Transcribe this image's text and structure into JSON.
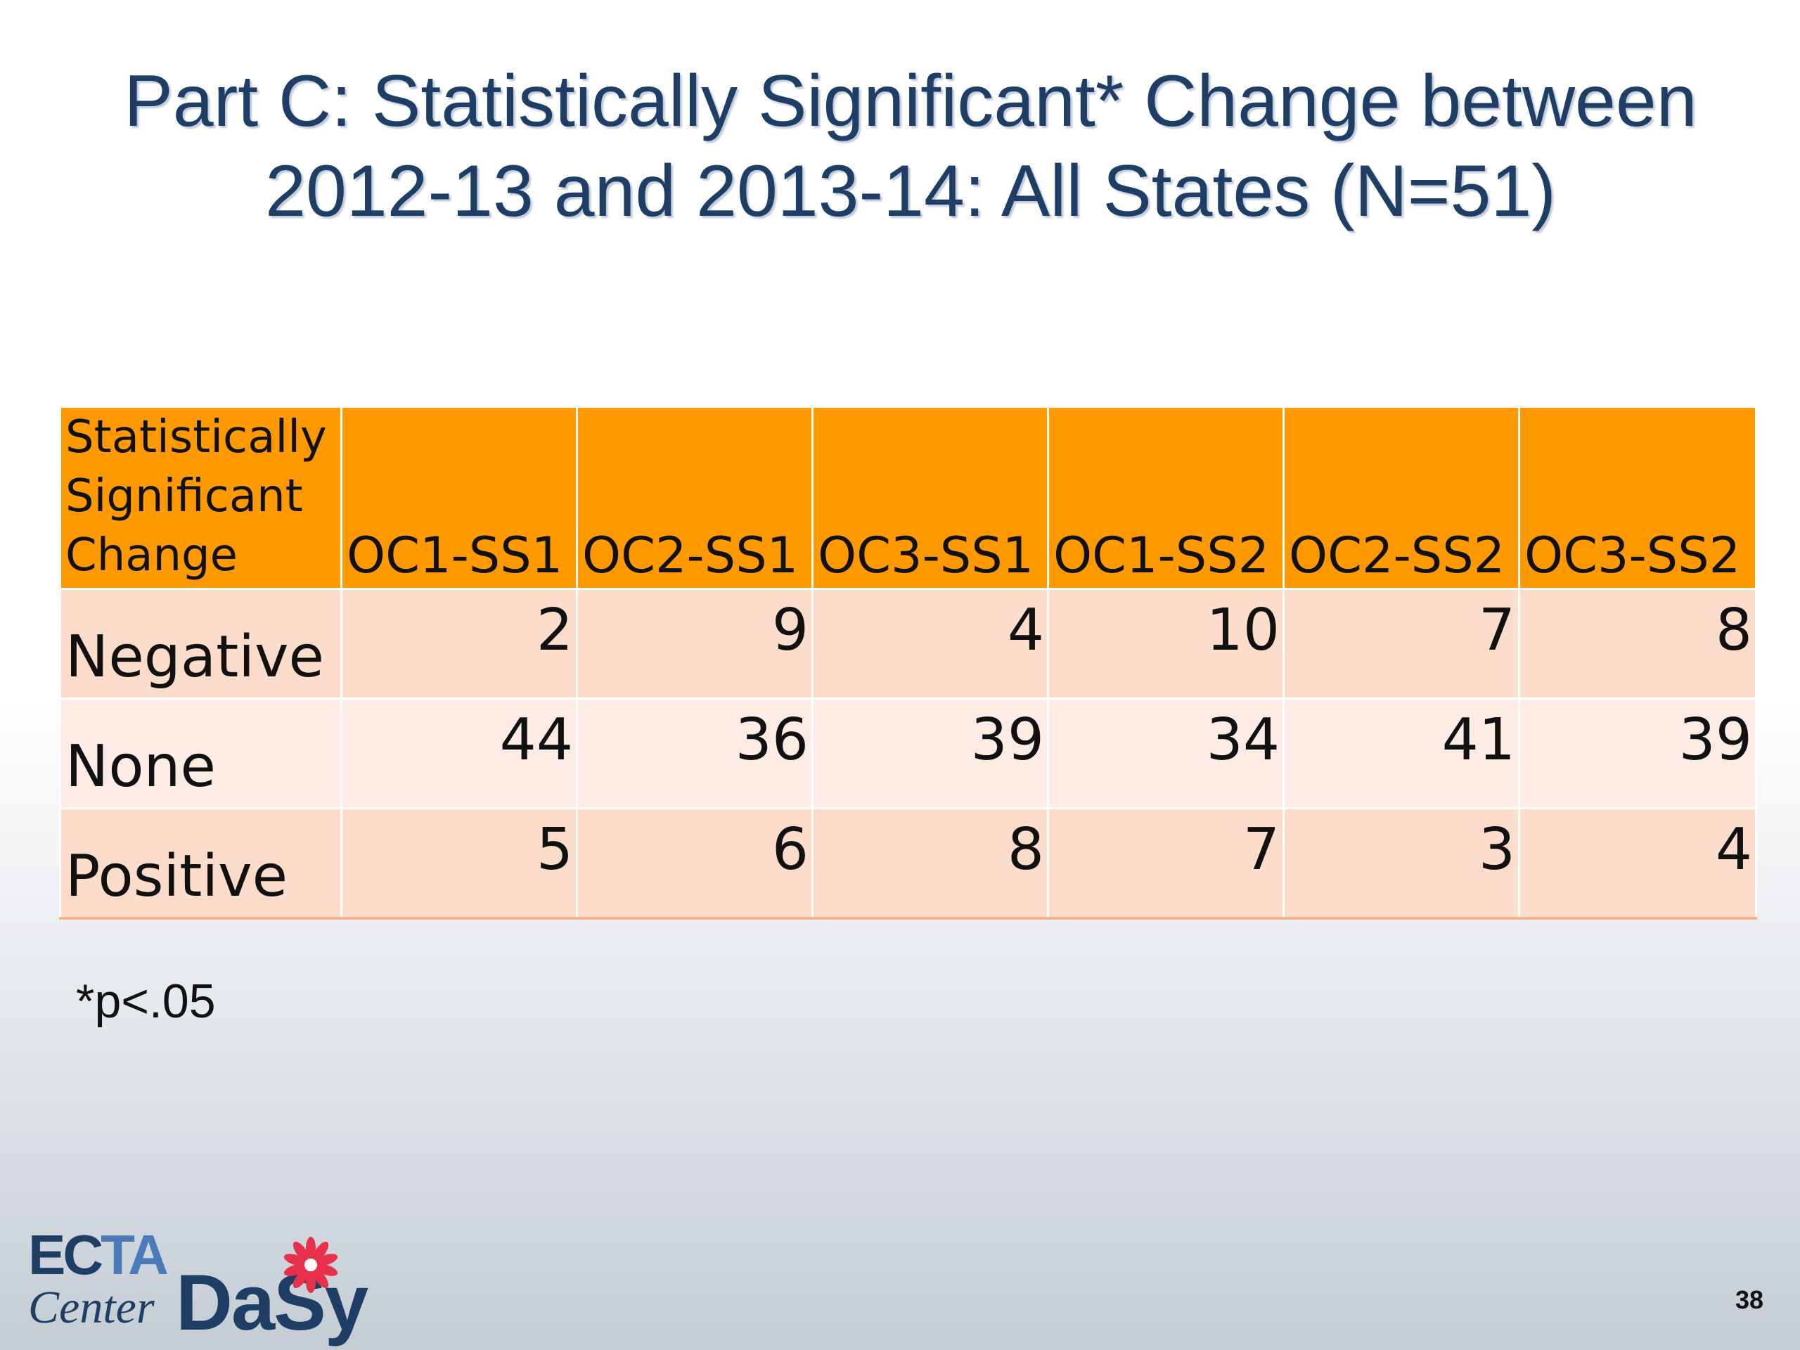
{
  "title": {
    "line1": "Part C: Statistically Significant* Change between",
    "line2": "2012-13 and 2013-14: All States (N=51)"
  },
  "table": {
    "headers": [
      "Statistically Significant Change",
      "OC1-SS1",
      "OC2-SS1",
      "OC3-SS1",
      "OC1-SS2",
      "OC2-SS2",
      "OC3-SS2"
    ],
    "rows": [
      {
        "label": "Negative",
        "values": [
          "2",
          "9",
          "4",
          "10",
          "7",
          "8"
        ]
      },
      {
        "label": "None",
        "values": [
          "44",
          "36",
          "39",
          "34",
          "41",
          "39"
        ]
      },
      {
        "label": "Positive",
        "values": [
          "5",
          "6",
          "8",
          "7",
          "3",
          "4"
        ]
      }
    ]
  },
  "footnote": "*p<.05",
  "logo": {
    "ecta_e": "EC",
    "ecta_ta": "TA",
    "center": "Center",
    "dasy": "DaSy"
  },
  "colors": {
    "title": "#1f3e66",
    "header_bg": "#ff9900",
    "row_odd": "#fcdccb",
    "row_even": "#fdece4",
    "flower": "#e8304a"
  },
  "page_number": "38"
}
